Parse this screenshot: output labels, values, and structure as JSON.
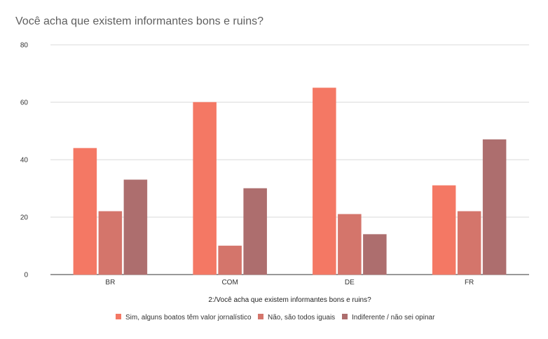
{
  "chart_data": {
    "type": "bar",
    "title": "Você acha que existem informantes bons e ruins?",
    "xlabel": "2:/Você acha que existem informantes bons e ruins?",
    "ylabel": "",
    "ylim": [
      0,
      80
    ],
    "yticks": [
      0,
      20,
      40,
      60,
      80
    ],
    "grid": true,
    "legend_position": "bottom",
    "categories": [
      "BR",
      "COM",
      "DE",
      "FR"
    ],
    "series": [
      {
        "name": "Sim, alguns boatos têm valor jornalístico",
        "color": "#f47864",
        "values": [
          44,
          60,
          65,
          31
        ]
      },
      {
        "name": "Não, são todos iguais",
        "color": "#d4756b",
        "values": [
          22,
          10,
          21,
          22
        ]
      },
      {
        "name": "Indiferente / não sei opinar",
        "color": "#ad6e6e",
        "values": [
          33,
          30,
          14,
          47
        ]
      }
    ]
  }
}
